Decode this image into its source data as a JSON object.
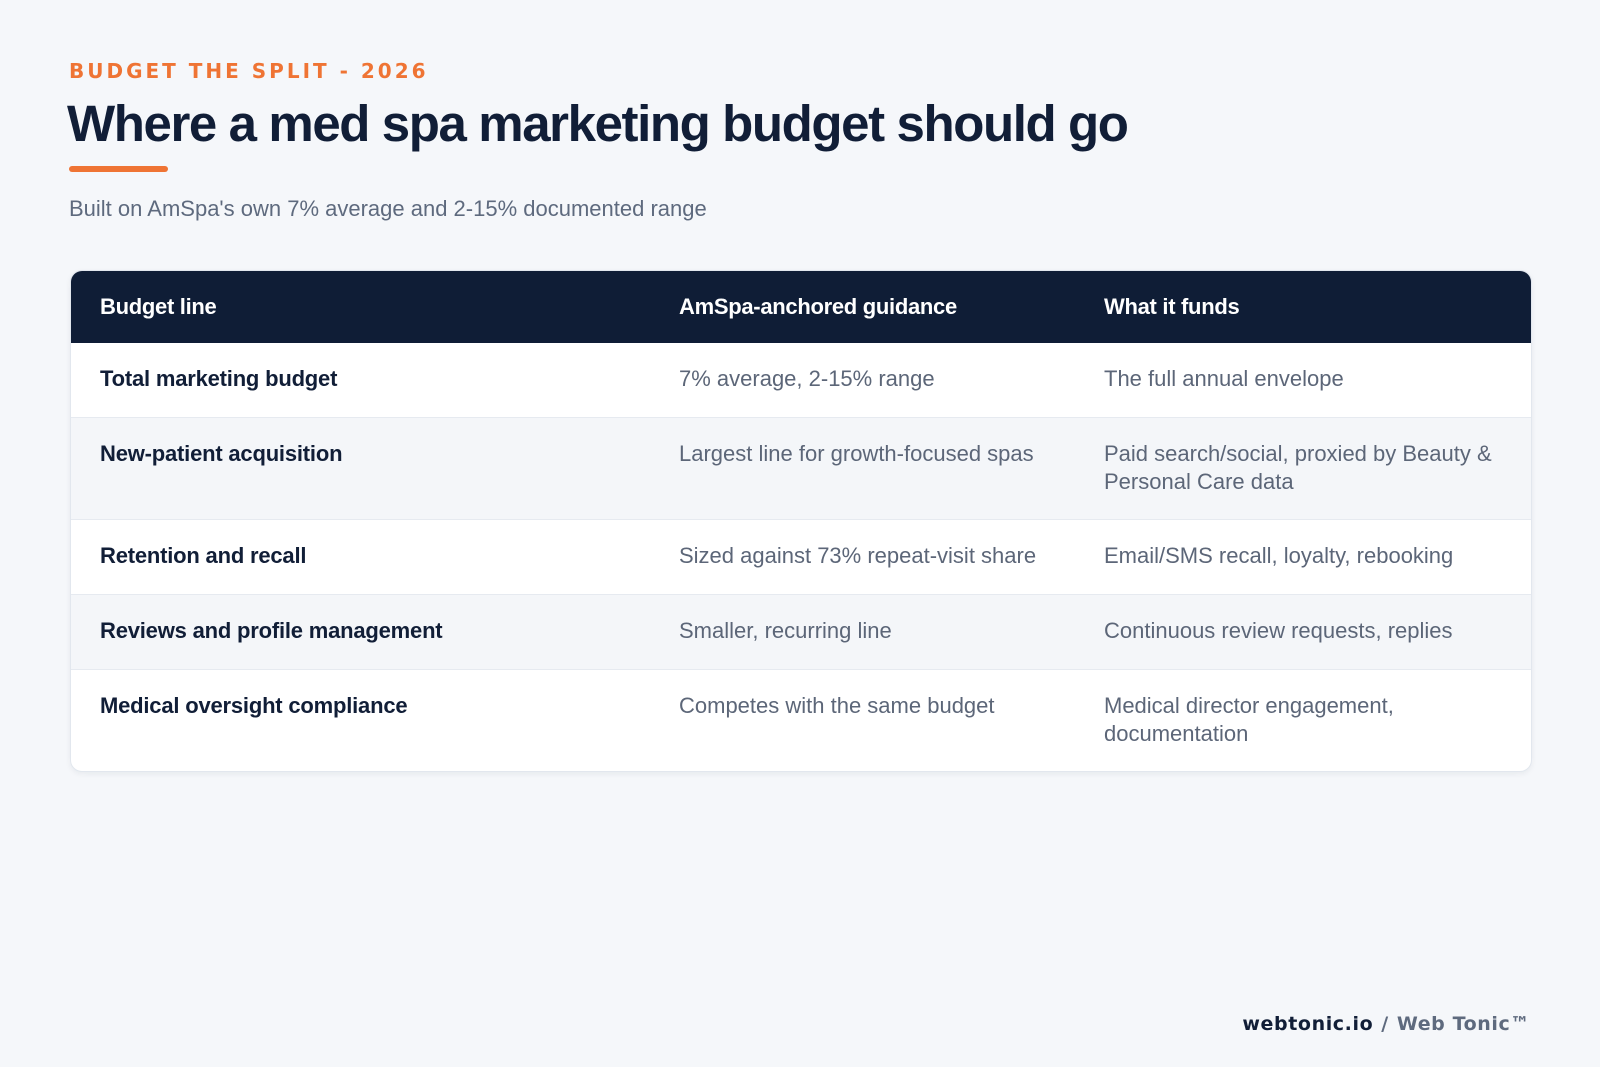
{
  "header": {
    "eyebrow": "BUDGET THE SPLIT - 2026",
    "title": "Where a med spa marketing budget should go",
    "subtitle": "Built on AmSpa's own 7% average and 2-15% documented range"
  },
  "table": {
    "columns": [
      "Budget line",
      "AmSpa-anchored guidance",
      "What it funds"
    ],
    "rows": [
      {
        "line": "Total marketing budget",
        "guidance": "7% average, 2-15% range",
        "funds": "The full annual envelope"
      },
      {
        "line": "New-patient acquisition",
        "guidance": "Largest line for growth-focused spas",
        "funds": "Paid search/social, proxied by Beauty & Personal Care data"
      },
      {
        "line": "Retention and recall",
        "guidance": "Sized against 73% repeat-visit share",
        "funds": "Email/SMS recall, loyalty, rebooking"
      },
      {
        "line": "Reviews and profile management",
        "guidance": "Smaller, recurring line",
        "funds": "Continuous review requests, replies"
      },
      {
        "line": "Medical oversight compliance",
        "guidance": "Competes with the same budget",
        "funds": "Medical director engagement, documentation"
      }
    ]
  },
  "footer": {
    "domain": "webtonic.io",
    "separator": "/",
    "brand": "Web Tonic™"
  },
  "colors": {
    "accent": "#ef7434",
    "navy": "#0f1d36",
    "background": "#f5f7fa"
  }
}
